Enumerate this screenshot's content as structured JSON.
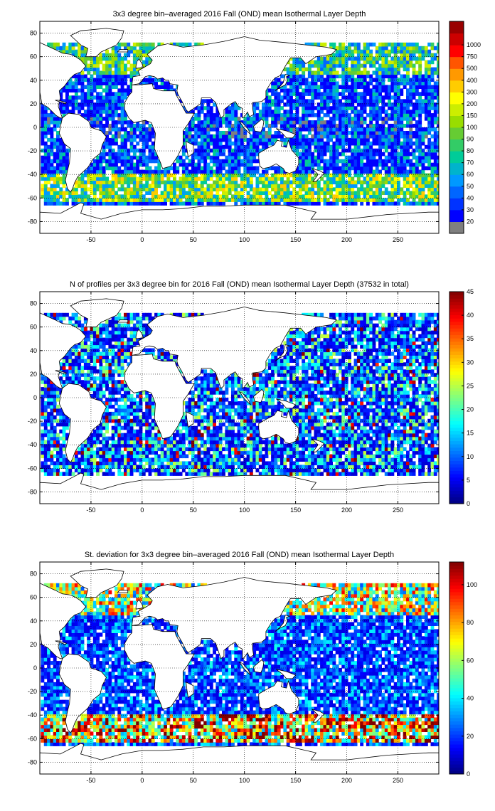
{
  "chart_data": [
    {
      "type": "heatmap",
      "title": "3x3 degree bin–averaged 2016 Fall (OND) mean Isothermal Layer Depth",
      "x_ticks": [
        "-50",
        "0",
        "50",
        "100",
        "150",
        "200",
        "250"
      ],
      "y_ticks": [
        "80",
        "60",
        "40",
        "20",
        "0",
        "-20",
        "-40",
        "-60",
        "-80"
      ],
      "xlim": [
        -100,
        290
      ],
      "ylim": [
        -90,
        90
      ],
      "colorbar": {
        "type": "categorical",
        "labels": [
          "20",
          "30",
          "40",
          "50",
          "60",
          "70",
          "80",
          "90",
          "100",
          "150",
          "200",
          "300",
          "400",
          "500",
          "750",
          "1000"
        ],
        "colors": [
          "#7f7f7f",
          "#0000ff",
          "#0033ff",
          "#0066ff",
          "#0099ff",
          "#00b3cc",
          "#00cc99",
          "#33cc66",
          "#66cc33",
          "#99dd00",
          "#ccee00",
          "#ffff00",
          "#ffcc00",
          "#ff9900",
          "#ff5500",
          "#ff0000",
          "#cc0000",
          "#990000"
        ]
      },
      "grid": true
    },
    {
      "type": "heatmap",
      "title": "N of profiles per 3x3 degree bin for 2016 Fall (OND) mean Isothermal Layer Depth  (37532 in total)",
      "x_ticks": [
        "-50",
        "0",
        "50",
        "100",
        "150",
        "200",
        "250"
      ],
      "y_ticks": [
        "80",
        "60",
        "40",
        "20",
        "0",
        "-20",
        "-40",
        "-60",
        "-80"
      ],
      "xlim": [
        -100,
        290
      ],
      "ylim": [
        -90,
        90
      ],
      "colorbar": {
        "type": "continuous",
        "range": [
          0,
          45
        ],
        "labels": [
          "0",
          "5",
          "10",
          "15",
          "20",
          "25",
          "30",
          "35",
          "40",
          "45"
        ],
        "colormap": "jet"
      },
      "grid": true
    },
    {
      "type": "heatmap",
      "title": "St. deviation for 3x3 degree bin–averaged 2016 Fall (OND) mean Isothermal Layer Depth",
      "x_ticks": [
        "-50",
        "0",
        "50",
        "100",
        "150",
        "200",
        "250"
      ],
      "y_ticks": [
        "80",
        "60",
        "40",
        "20",
        "0",
        "-20",
        "-40",
        "-60",
        "-80"
      ],
      "xlim": [
        -100,
        290
      ],
      "ylim": [
        -90,
        90
      ],
      "colorbar": {
        "type": "continuous",
        "range": [
          0,
          112
        ],
        "labels": [
          "0",
          "20",
          "40",
          "60",
          "80",
          "100"
        ],
        "colormap": "jet"
      },
      "grid": true
    }
  ],
  "colors": {
    "land": "#ffffff",
    "coast": "#000000",
    "grid": "#000000"
  }
}
